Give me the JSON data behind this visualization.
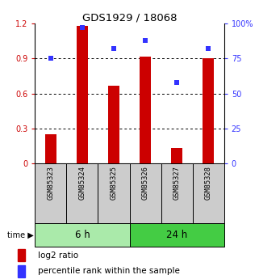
{
  "title": "GDS1929 / 18068",
  "samples": [
    "GSM85323",
    "GSM85324",
    "GSM85325",
    "GSM85326",
    "GSM85327",
    "GSM85328"
  ],
  "log2_ratio": [
    0.25,
    1.18,
    0.67,
    0.92,
    0.13,
    0.9
  ],
  "percentile_rank": [
    75,
    97,
    82,
    88,
    58,
    82
  ],
  "groups": [
    {
      "label": "6 h",
      "color_light": "#ccffcc",
      "color_dark": "#66dd66"
    },
    {
      "label": "24 h",
      "color_light": "#ccffcc",
      "color_dark": "#33cc33"
    }
  ],
  "bar_color": "#cc0000",
  "dot_color": "#3333ff",
  "ylim_left": [
    0,
    1.2
  ],
  "ylim_right": [
    0,
    100
  ],
  "yticks_left": [
    0,
    0.3,
    0.6,
    0.9,
    1.2
  ],
  "ytick_labels_left": [
    "0",
    "0.3",
    "0.6",
    "0.9",
    "1.2"
  ],
  "yticks_right": [
    0,
    25,
    50,
    75,
    100
  ],
  "ytick_labels_right": [
    "0",
    "25",
    "50",
    "75",
    "100%"
  ],
  "grid_lines": [
    0.3,
    0.6,
    0.9
  ],
  "legend_labels": [
    "log2 ratio",
    "percentile rank within the sample"
  ],
  "tick_area_color": "#cccccc",
  "group_colors": [
    "#aaeaaa",
    "#44cc44"
  ]
}
